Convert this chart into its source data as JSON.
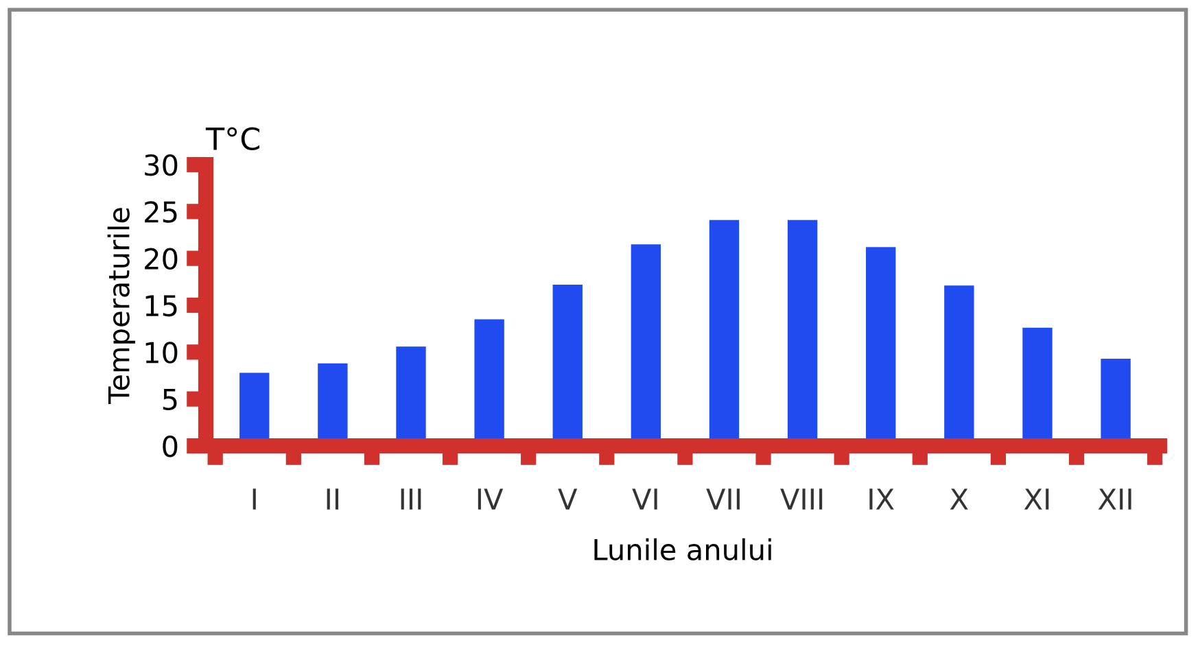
{
  "chart_data": {
    "type": "bar",
    "categories": [
      "I",
      "II",
      "III",
      "IV",
      "V",
      "VI",
      "VII",
      "VIII",
      "IX",
      "X",
      "XI",
      "XII"
    ],
    "values": [
      7.8,
      8.8,
      10.6,
      13.5,
      17.2,
      21.5,
      24.1,
      24.1,
      21.2,
      17.1,
      12.6,
      9.3
    ],
    "color": "#1f4bf0",
    "xlabel": "Lunile anului",
    "ylabel": "Temperaturile",
    "annotations": [
      "T°C"
    ],
    "ylim": [
      0,
      30
    ],
    "yticks": [
      0,
      5,
      10,
      15,
      20,
      25,
      30
    ],
    "grid": false,
    "legend": false
  }
}
